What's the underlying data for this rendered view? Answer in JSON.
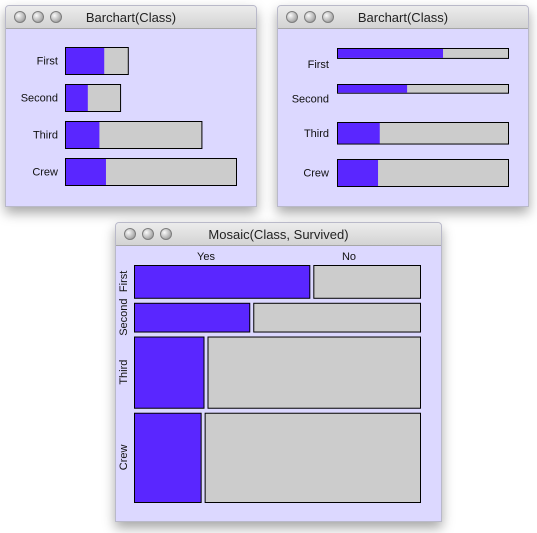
{
  "colors": {
    "survived": "#5a26ff",
    "died": "#cccccc",
    "panel_bg": "#dcd8ff"
  },
  "windows": [
    {
      "title": "Barchart(Class)"
    },
    {
      "title": "Barchart(Class)"
    },
    {
      "title": "Mosaic(Class, Survived)"
    }
  ],
  "chart_data": [
    {
      "type": "bar",
      "orientation": "horizontal",
      "stacked": true,
      "title": "Barchart(Class)",
      "categories": [
        "First",
        "Second",
        "Third",
        "Crew"
      ],
      "bar_lengths": [
        325,
        285,
        706,
        885
      ],
      "highlight_lengths": [
        203,
        118,
        178,
        212
      ],
      "colors": [
        "#5a26ff",
        "#cccccc"
      ]
    },
    {
      "type": "bar",
      "orientation": "horizontal",
      "spineplot": true,
      "title": "Barchart(Class)",
      "categories": [
        "First",
        "Second",
        "Third",
        "Crew"
      ],
      "bar_weights": [
        325,
        285,
        706,
        885
      ],
      "highlight_fraction": [
        0.62,
        0.41,
        0.25,
        0.24
      ],
      "colors": [
        "#5a26ff",
        "#cccccc"
      ]
    },
    {
      "type": "mosaic",
      "title": "Mosaic(Class, Survived)",
      "row_labels": [
        "First",
        "Second",
        "Third",
        "Crew"
      ],
      "col_labels": [
        "Yes",
        "No"
      ],
      "row_weights": [
        325,
        285,
        706,
        885
      ],
      "yes_fraction": [
        0.62,
        0.41,
        0.25,
        0.24
      ],
      "colors": [
        "#5a26ff",
        "#cccccc"
      ]
    }
  ]
}
